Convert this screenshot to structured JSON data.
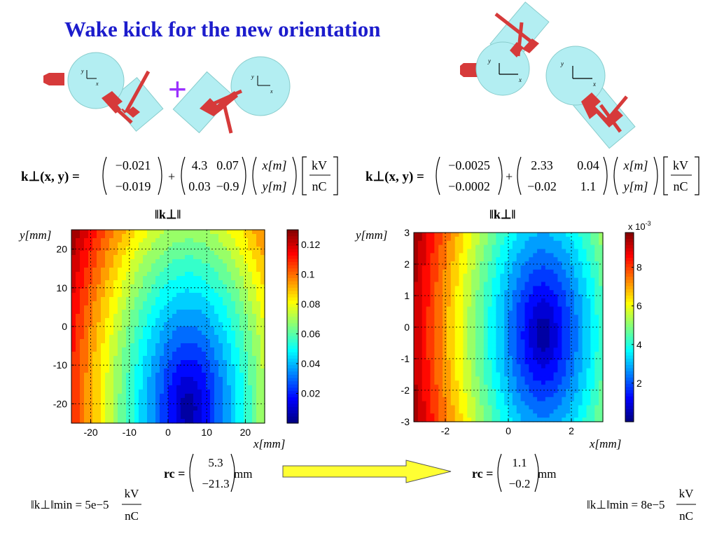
{
  "title": "Wake kick for the new orientation",
  "plus": "+",
  "diagram": {
    "axis_x": "x",
    "axis_y": "y"
  },
  "left_equation": {
    "lhs": "k⊥(x, y) =",
    "vector": [
      "−0.021",
      "−0.019"
    ],
    "matrix": [
      [
        "4.3",
        "0.07"
      ],
      [
        "0.03",
        "−0.9"
      ]
    ],
    "coords": [
      "x[m]",
      "y[m]"
    ],
    "unit_num": "kV",
    "unit_den": "nC"
  },
  "right_equation": {
    "lhs": "k⊥(x, y) =",
    "vector": [
      "−0.0025",
      "−0.0002"
    ],
    "matrix": [
      [
        "2.33",
        "0.04"
      ],
      [
        "−0.02",
        "1.1"
      ]
    ],
    "coords": [
      "x[m]",
      "y[m]"
    ],
    "unit_num": "kV",
    "unit_den": "nC"
  },
  "chart_data": [
    {
      "type": "heatmap",
      "title": "‖k⊥‖",
      "xlabel": "x[mm]",
      "ylabel": "y[mm]",
      "xlim": [
        -25,
        25
      ],
      "ylim": [
        -25,
        25
      ],
      "xticks": [
        -20,
        -10,
        0,
        10,
        20
      ],
      "yticks": [
        -20,
        -10,
        0,
        10,
        20
      ],
      "colorbar": {
        "range": [
          0,
          0.13
        ],
        "ticks": [
          "0.02",
          "0.04",
          "0.06",
          "0.08",
          "0.1",
          "0.12"
        ],
        "multiplier": ""
      },
      "minimum_at": [
        5.3,
        -21.3
      ],
      "grid": true,
      "colormap": "jet"
    },
    {
      "type": "heatmap",
      "title": "‖k⊥‖",
      "xlabel": "x[mm]",
      "ylabel": "y[mm]",
      "xlim": [
        -3,
        3
      ],
      "ylim": [
        -3,
        3
      ],
      "xticks": [
        -2,
        0,
        2
      ],
      "yticks": [
        -3,
        -2,
        -1,
        0,
        1,
        2,
        3
      ],
      "colorbar": {
        "range": [
          0,
          0.0098
        ],
        "ticks": [
          "2",
          "4",
          "6",
          "8"
        ],
        "multiplier": "x 10-3"
      },
      "minimum_at": [
        1.1,
        -0.2
      ],
      "grid": true,
      "colormap": "jet"
    }
  ],
  "left_rc": {
    "label": "rc =",
    "values": [
      "5.3",
      "−21.3"
    ],
    "unit": "mm"
  },
  "right_rc": {
    "label": "rc =",
    "values": [
      "1.1",
      "−0.2"
    ],
    "unit": "mm"
  },
  "left_min": {
    "label": "‖k⊥‖min = 5e−5",
    "unit_num": "kV",
    "unit_den": "nC"
  },
  "right_min": {
    "label": "‖k⊥‖min = 8e−5",
    "unit_num": "kV",
    "unit_den": "nC"
  },
  "colors": {
    "title": "#1c1ccc",
    "plus": "#9b30ff",
    "arrow_fill": "#ffff33",
    "pipe_fill": "#b3eef2",
    "coupler": "#d63a3a"
  }
}
